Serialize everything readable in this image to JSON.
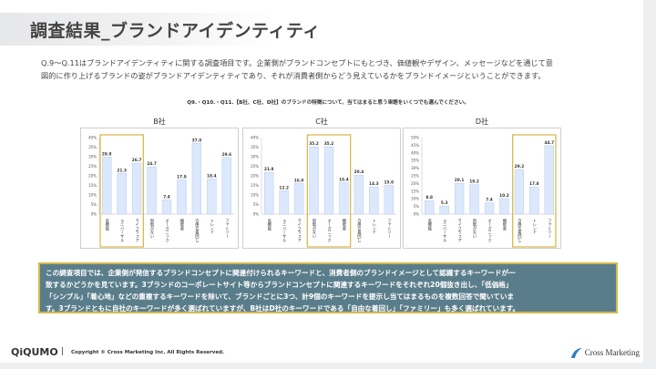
{
  "title": "調査結果_ブランドアイデンティティ",
  "intro_lines": [
    "Q.9～Q.11はブランドアイデンティティに関する調査項目です。企業側がブランドコンセプトにもとづき、価値観やデザイン、メッセージなどを通じて意",
    "図的に作り上げるブランドの姿がブランドアイデンティティであり、それが消費者側からどう見えているかをブランドイメージということができます。"
  ],
  "question": "Q9.・Q10.・Q11.【B社、C社、D社】のブランドの特徴について、当てはまると思う単語をいくつでも選んでください。",
  "chart_data": [
    {
      "type": "bar",
      "title": "B社",
      "categories": [
        "高機能",
        "ユニバーサル",
        "ライフウェア",
        "無駄がない",
        "オーガニック",
        "機能美",
        "自由な着回し",
        "トレンド",
        "ファミリー"
      ],
      "values": [
        29.8,
        21.3,
        26.7,
        24.7,
        7.4,
        17.9,
        37.0,
        18.4,
        29.6
      ],
      "ylim": [
        0,
        40
      ],
      "yticks": [
        "0%",
        "5%",
        "10%",
        "15%",
        "20%",
        "25%",
        "30%",
        "35%",
        "40%"
      ],
      "highlight": [
        0,
        2
      ],
      "grid": false
    },
    {
      "type": "bar",
      "title": "C社",
      "categories": [
        "高機能",
        "ユニバーサル",
        "ライフウェア",
        "無駄がない",
        "オーガニック",
        "機能美",
        "自由な着回し",
        "トレンド",
        "ファミリー"
      ],
      "values": [
        21.8,
        12.2,
        16.0,
        35.2,
        35.2,
        16.4,
        20.4,
        14.3,
        15.0
      ],
      "ylim": [
        0,
        40
      ],
      "yticks": [
        "0%",
        "5%",
        "10%",
        "15%",
        "20%",
        "25%",
        "30%",
        "35%",
        "40%"
      ],
      "highlight": [
        3,
        5
      ],
      "grid": false
    },
    {
      "type": "bar",
      "title": "D社",
      "categories": [
        "高機能",
        "ユニバーサル",
        "ライフウェア",
        "無駄がない",
        "オーガニック",
        "機能美",
        "自由な着回し",
        "トレンド",
        "ファミリー"
      ],
      "values": [
        8.8,
        5.3,
        20.1,
        19.2,
        7.4,
        10.2,
        29.2,
        17.8,
        44.7
      ],
      "ylim": [
        0,
        50
      ],
      "yticks": [
        "0%",
        "5%",
        "10%",
        "15%",
        "20%",
        "25%",
        "30%",
        "35%",
        "40%",
        "45%",
        "50%"
      ],
      "highlight": [
        6,
        8
      ],
      "grid": false
    }
  ],
  "colors": {
    "bar_fill": "#dce8fb",
    "bar_stroke": "#b5ccf2",
    "highlight": "#d9b443",
    "note_bg": "#5a7d8b"
  },
  "note_lines": [
    "この調査項目では、企業側が発信するブランドコンセプトに関連付けられるキーワードと、消費者側のブランドイメージとして認識するキーワードが一",
    "致するかどうかを見ています。3ブランドのコーポレートサイト等からブランドコンセプトに関連するキーワードをそれぞれ20個抜き出し、「低価格」",
    "「シンプル」「着心地」などの重複するキーワードを除いて、ブランドごとに3つ、計9個のキーワードを提示し当てはまるものを複数回答で聞いていま",
    "す。3ブランドともに自社のキーワードが多く選ばれていますが、B社はD社のキーワードである「自由な着回し」「ファミリー」も多く選ばれています。"
  ],
  "footer": {
    "logo": "QiQUMO",
    "separator": "|",
    "copyright": "Copyright © Cross Marketing Inc. All Rights Reserved.",
    "company": "Cross Marketing"
  }
}
